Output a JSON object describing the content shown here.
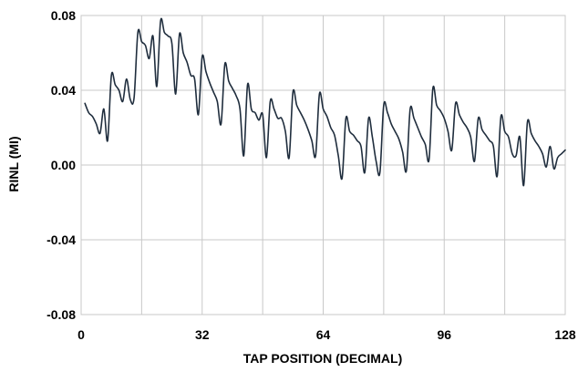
{
  "chart_data": {
    "type": "line",
    "title": "",
    "xlabel": "TAP POSITION (DECIMAL)",
    "ylabel": "RINL (MI)",
    "xlim": [
      0,
      128
    ],
    "ylim": [
      -0.08,
      0.08
    ],
    "xticks": [
      0,
      32,
      64,
      96,
      128
    ],
    "yticks": [
      -0.08,
      -0.04,
      0.0,
      0.04,
      0.08
    ],
    "xtick_labels": [
      "0",
      "32",
      "64",
      "96",
      "128"
    ],
    "ytick_labels": [
      "-0.08",
      "-0.04",
      "0.00",
      "0.04",
      "0.08"
    ],
    "grid": true,
    "line_color": "#1f2d3d",
    "grid_color": "#c8c8c8",
    "series": [
      {
        "x": [
          1,
          2,
          3,
          4,
          5,
          6,
          7,
          8,
          9,
          10,
          11,
          12,
          13,
          14,
          15,
          16,
          17,
          18,
          19,
          20,
          21,
          22,
          23,
          24,
          25,
          26,
          27,
          28,
          29,
          30,
          31,
          32,
          33,
          34,
          35,
          36,
          37,
          38,
          39,
          40,
          41,
          42,
          43,
          44,
          45,
          46,
          47,
          48,
          49,
          50,
          51,
          52,
          53,
          54,
          55,
          56,
          57,
          58,
          59,
          60,
          61,
          62,
          63,
          64,
          65,
          66,
          67,
          68,
          69,
          70,
          71,
          72,
          73,
          74,
          75,
          76,
          77,
          78,
          79,
          80,
          81,
          82,
          83,
          84,
          85,
          86,
          87,
          88,
          89,
          90,
          91,
          92,
          93,
          94,
          95,
          96,
          97,
          98,
          99,
          100,
          101,
          102,
          103,
          104,
          105,
          106,
          107,
          108,
          109,
          110,
          111,
          112,
          113,
          114,
          115,
          116,
          117,
          118,
          119,
          120,
          121,
          122,
          123,
          124,
          125,
          126,
          127,
          128
        ],
        "y": [
          0.033,
          0.028,
          0.026,
          0.022,
          0.017,
          0.03,
          0.013,
          0.048,
          0.043,
          0.04,
          0.034,
          0.046,
          0.035,
          0.036,
          0.071,
          0.066,
          0.064,
          0.057,
          0.069,
          0.042,
          0.077,
          0.071,
          0.069,
          0.065,
          0.038,
          0.07,
          0.06,
          0.055,
          0.048,
          0.046,
          0.027,
          0.058,
          0.05,
          0.044,
          0.039,
          0.034,
          0.022,
          0.054,
          0.045,
          0.041,
          0.037,
          0.03,
          0.005,
          0.043,
          0.03,
          0.028,
          0.024,
          0.027,
          0.004,
          0.034,
          0.03,
          0.025,
          0.025,
          0.018,
          0.004,
          0.039,
          0.032,
          0.028,
          0.024,
          0.019,
          0.013,
          0.005,
          0.038,
          0.03,
          0.026,
          0.02,
          0.016,
          0.005,
          -0.007,
          0.025,
          0.018,
          0.016,
          0.013,
          0.01,
          -0.004,
          0.025,
          0.015,
          0.002,
          -0.004,
          0.032,
          0.028,
          0.022,
          0.018,
          0.014,
          0.007,
          -0.003,
          0.03,
          0.025,
          0.02,
          0.015,
          0.011,
          0.003,
          0.041,
          0.032,
          0.029,
          0.025,
          0.018,
          0.008,
          0.033,
          0.027,
          0.023,
          0.02,
          0.015,
          0.002,
          0.025,
          0.019,
          0.016,
          0.013,
          0.01,
          -0.006,
          0.026,
          0.018,
          0.015,
          0.006,
          0.005,
          0.015,
          -0.011,
          0.023,
          0.017,
          0.013,
          0.01,
          0.006,
          -0.001,
          0.01,
          -0.002,
          0.004,
          0.006,
          0.008
        ]
      }
    ]
  }
}
